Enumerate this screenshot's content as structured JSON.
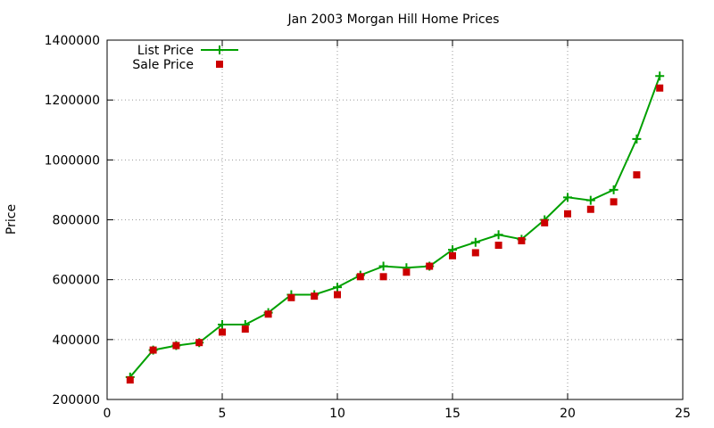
{
  "chart_data": {
    "type": "line",
    "title": "Jan 2003 Morgan Hill Home Prices",
    "xlabel": "",
    "ylabel": "Price",
    "xlim": [
      0,
      25
    ],
    "ylim": [
      200000,
      1400000
    ],
    "xticks": [
      0,
      5,
      10,
      15,
      20,
      25
    ],
    "yticks": [
      200000,
      400000,
      600000,
      800000,
      1000000,
      1200000,
      1400000
    ],
    "grid": true,
    "legend_position": "top-left",
    "series": [
      {
        "name": "List Price",
        "style": "line-with-plus-markers",
        "color": "#00a000",
        "x": [
          1,
          2,
          3,
          4,
          5,
          6,
          7,
          8,
          9,
          10,
          11,
          12,
          13,
          14,
          15,
          16,
          17,
          18,
          19,
          20,
          21,
          22,
          23,
          24
        ],
        "y": [
          275000,
          365000,
          380000,
          390000,
          450000,
          450000,
          490000,
          550000,
          550000,
          575000,
          615000,
          645000,
          640000,
          645000,
          700000,
          725000,
          750000,
          735000,
          800000,
          875000,
          865000,
          900000,
          1070000,
          1280000
        ]
      },
      {
        "name": "Sale Price",
        "style": "square-markers",
        "color": "#cc0000",
        "x": [
          1,
          2,
          3,
          4,
          5,
          6,
          7,
          8,
          9,
          10,
          11,
          12,
          13,
          14,
          15,
          16,
          17,
          18,
          19,
          20,
          21,
          22,
          23,
          24
        ],
        "y": [
          265000,
          365000,
          380000,
          390000,
          425000,
          435000,
          485000,
          540000,
          545000,
          550000,
          610000,
          610000,
          625000,
          645000,
          680000,
          690000,
          715000,
          730000,
          790000,
          820000,
          835000,
          860000,
          950000,
          1240000
        ]
      }
    ]
  }
}
